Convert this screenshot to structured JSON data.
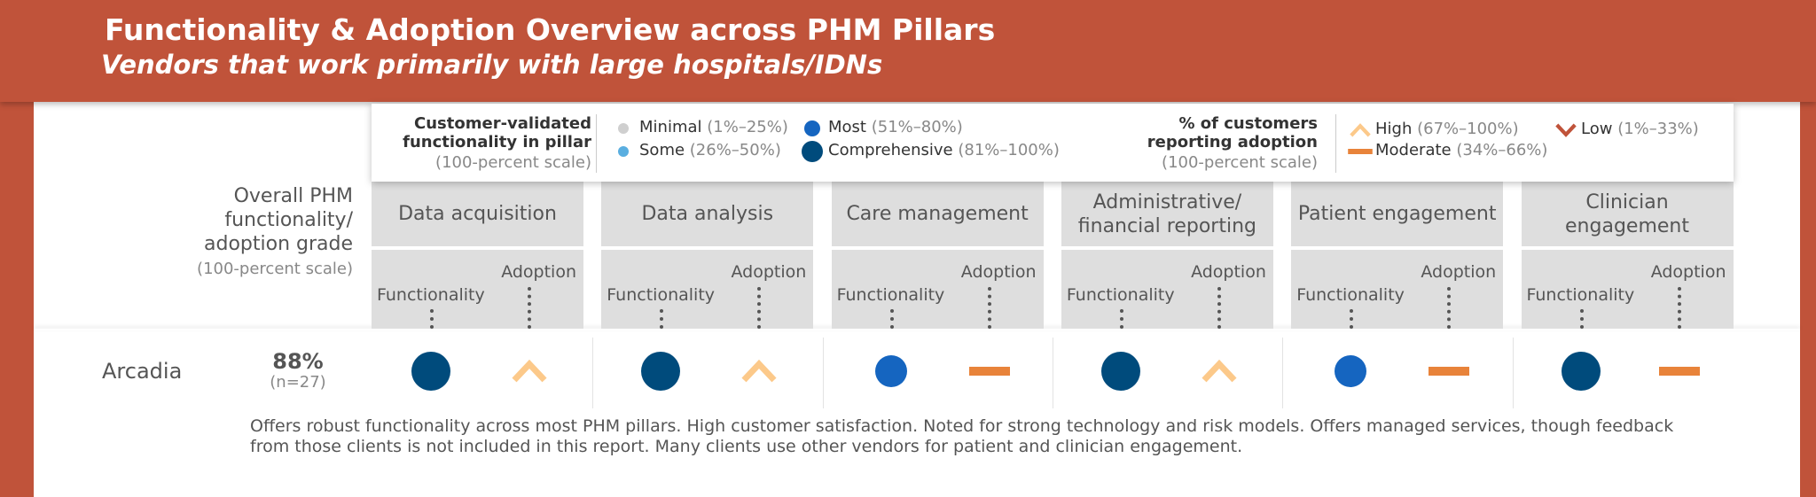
{
  "header": {
    "title": "Functionality & Adoption Overview across PHM Pillars",
    "subtitle": "Vendors that work primarily with large hospitals/IDNs"
  },
  "legend": {
    "functionality": {
      "title": "Customer-validated functionality in pillar",
      "scale": "(100-percent scale)",
      "items": [
        {
          "label": "Minimal",
          "range": "(1%–25%)"
        },
        {
          "label": "Some",
          "range": "(26%–50%)"
        },
        {
          "label": "Most",
          "range": "(51%–80%)"
        },
        {
          "label": "Comprehensive",
          "range": "(81%–100%)"
        }
      ]
    },
    "adoption": {
      "title": "% of customers reporting adoption",
      "scale": "(100-percent scale)",
      "items": [
        {
          "label": "High",
          "range": "(67%–100%)"
        },
        {
          "label": "Moderate",
          "range": "(34%–66%)"
        },
        {
          "label": "Low",
          "range": "(1%–33%)"
        }
      ]
    }
  },
  "grade_header": {
    "title": "Overall PHM functionality/ adoption grade",
    "scale": "(100-percent scale)"
  },
  "pillars": [
    {
      "name": "Data acquisition",
      "functionality": "Functionality",
      "adoption": "Adoption"
    },
    {
      "name": "Data analysis",
      "functionality": "Functionality",
      "adoption": "Adoption"
    },
    {
      "name": "Care management",
      "functionality": "Functionality",
      "adoption": "Adoption"
    },
    {
      "name": "Administrative/ financial reporting",
      "functionality": "Functionality",
      "adoption": "Adoption"
    },
    {
      "name": "Patient engagement",
      "functionality": "Functionality",
      "adoption": "Adoption"
    },
    {
      "name": "Clinician engagement",
      "functionality": "Functionality",
      "adoption": "Adoption"
    }
  ],
  "vendors": [
    {
      "name": "Arcadia",
      "grade": "88%",
      "n": "(n=27)",
      "ratings": [
        [
          "Comprehensive",
          "High"
        ],
        [
          "Comprehensive",
          "High"
        ],
        [
          "Most",
          "Moderate"
        ],
        [
          "Comprehensive",
          "High"
        ],
        [
          "Most",
          "Moderate"
        ],
        [
          "Comprehensive",
          "Moderate"
        ]
      ],
      "description": "Offers robust functionality across most PHM pillars. High customer satisfaction. Noted for strong technology and risk models. Offers managed services, though feedback from those clients is not included in this report. Many clients use other vendors for patient and clinician engagement."
    }
  ]
}
